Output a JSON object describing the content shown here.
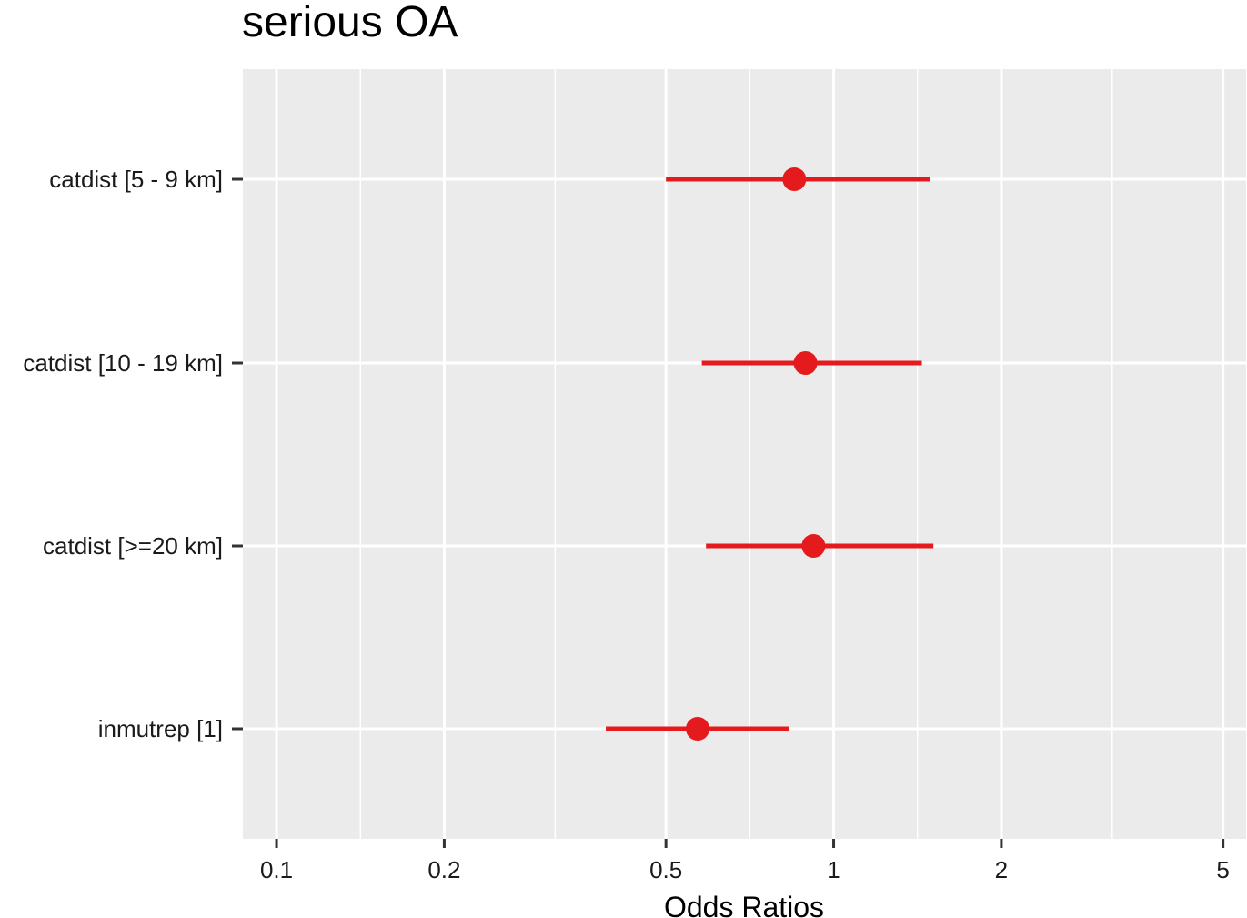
{
  "chart_data": {
    "type": "forest",
    "title": "serious OA",
    "xlabel": "Odds Ratios",
    "ylabel": "",
    "x_scale": "log10",
    "xlim": [
      0.087,
      5.5
    ],
    "x_ticks": [
      0.1,
      0.2,
      0.5,
      1,
      2,
      5
    ],
    "x_tick_labels": [
      "0.1",
      "0.2",
      "0.5",
      "1",
      "2",
      "5"
    ],
    "grid": true,
    "categories": [
      "catdist [5 - 9 km]",
      "catdist [10 - 19 km]",
      "catdist [>=20 km]",
      "inmutrep [1]"
    ],
    "estimates": [
      0.85,
      0.89,
      0.92,
      0.57
    ],
    "ci_lower": [
      0.5,
      0.58,
      0.59,
      0.39
    ],
    "ci_upper": [
      1.49,
      1.44,
      1.51,
      0.83
    ],
    "colors": {
      "point": "#e41a1c",
      "panel": "#ebebeb",
      "grid": "#ffffff",
      "axis_text": "#1a1a1a",
      "tick": "#333333"
    }
  }
}
